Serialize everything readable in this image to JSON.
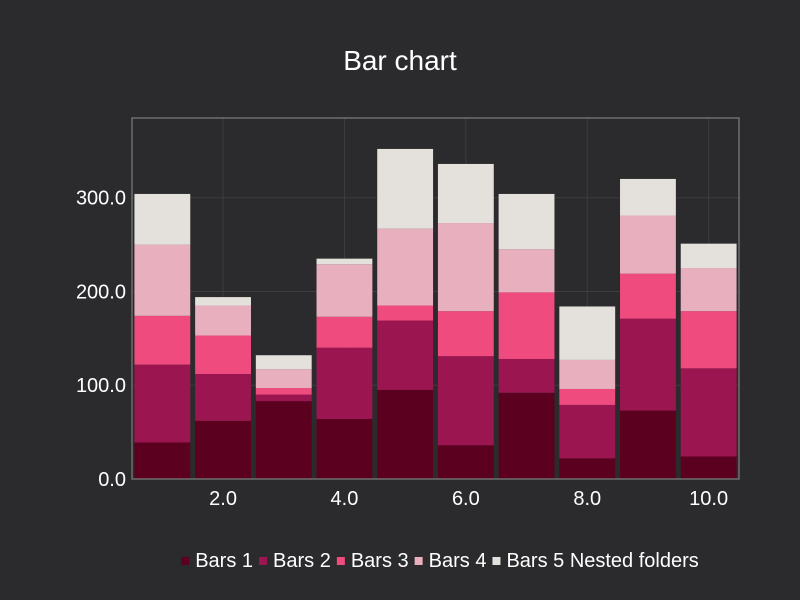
{
  "chart_data": {
    "type": "bar",
    "stacked": true,
    "title": "Bar chart",
    "xlabel": "",
    "ylabel": "",
    "x": [
      1,
      2,
      3,
      4,
      5,
      6,
      7,
      8,
      9,
      10
    ],
    "xlim": [
      0.5,
      10.5
    ],
    "ylim": [
      0,
      385
    ],
    "xticks": [
      2,
      4,
      6,
      8,
      10
    ],
    "xtick_labels": [
      "2.0",
      "4.0",
      "6.0",
      "8.0",
      "10.0"
    ],
    "yticks": [
      0,
      100,
      200,
      300
    ],
    "ytick_labels": [
      "0.0",
      "100.0",
      "200.0",
      "300.0"
    ],
    "grid": true,
    "legend_position": "bottom",
    "series": [
      {
        "name": "Bars 1",
        "color": "#5c0020",
        "values": [
          39,
          62,
          83,
          64,
          95,
          36,
          92,
          22,
          73,
          24
        ]
      },
      {
        "name": "Bars 2",
        "color": "#9b1650",
        "values": [
          83,
          50,
          7,
          76,
          74,
          95,
          36,
          57,
          98,
          94
        ]
      },
      {
        "name": "Bars 3",
        "color": "#ef4b7f",
        "values": [
          52,
          41,
          7,
          33,
          16,
          48,
          71,
          17,
          48,
          61
        ]
      },
      {
        "name": "Bars 4",
        "color": "#e8afbe",
        "values": [
          76,
          32,
          20,
          56,
          82,
          94,
          46,
          31,
          62,
          46
        ]
      },
      {
        "name": "Bars 5 Nested folders",
        "color": "#e4e1dc",
        "values": [
          54,
          9,
          15,
          6,
          85,
          63,
          59,
          57,
          39,
          26
        ]
      }
    ]
  }
}
